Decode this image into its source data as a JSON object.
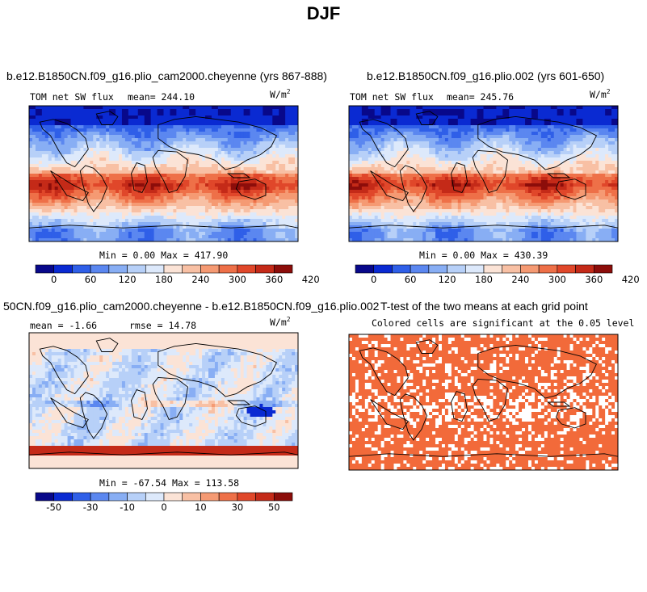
{
  "figure": {
    "title": "DJF"
  },
  "panels": [
    {
      "title": "b.e12.B1850CN.f09_g16.plio_cam2000.cheyenne (yrs 867-888)",
      "label": "TOM net SW flux",
      "stat": "mean= 244.10",
      "units": "W/m",
      "units_exp": "2",
      "range_text": "Min =   0.00 Max = 417.90"
    },
    {
      "title": "b.e12.B1850CN.f09_g16.plio.002 (yrs 601-650)",
      "label": "TOM net SW flux",
      "stat": "mean= 245.76",
      "units": "W/m",
      "units_exp": "2",
      "range_text": "Min =   0.00 Max = 430.39"
    },
    {
      "title": "50CN.f09_g16.plio_cam2000.cheyenne - b.e12.B1850CN.f09_g16.plio.002",
      "label": "mean =  -1.66",
      "stat": "rmse =  14.78",
      "units": "W/m",
      "units_exp": "2",
      "range_text": "Min = -67.54 Max = 113.58"
    },
    {
      "title": "T-test of the two means at each grid point",
      "subtitle": "Colored cells are significant at the 0.05 level"
    }
  ],
  "chart_data": [
    {
      "type": "heatmap",
      "title": "b.e12.B1850CN.f09_g16.plio_cam2000.cheyenne (yrs 867-888)",
      "variable": "TOM net SW flux",
      "mean": 244.1,
      "min": 0.0,
      "max": 417.9,
      "units": "W/m2",
      "colorbar_ticks": [
        "0",
        "60",
        "120",
        "180",
        "240",
        "300",
        "360",
        "420"
      ],
      "colorbar_colors": [
        "#08088a",
        "#0a2ad2",
        "#2f5fe8",
        "#5b87f0",
        "#88aef4",
        "#b7d0f8",
        "#dde9fb",
        "#fbe3d6",
        "#f8c0a4",
        "#f59a73",
        "#ee7048",
        "#e0472a",
        "#c42a18",
        "#8c0d0a"
      ]
    },
    {
      "type": "heatmap",
      "title": "b.e12.B1850CN.f09_g16.plio.002 (yrs 601-650)",
      "variable": "TOM net SW flux",
      "mean": 245.76,
      "min": 0.0,
      "max": 430.39,
      "units": "W/m2",
      "colorbar_ticks": [
        "0",
        "60",
        "120",
        "180",
        "240",
        "300",
        "360",
        "420"
      ],
      "colorbar_colors": [
        "#08088a",
        "#0a2ad2",
        "#2f5fe8",
        "#5b87f0",
        "#88aef4",
        "#b7d0f8",
        "#dde9fb",
        "#fbe3d6",
        "#f8c0a4",
        "#f59a73",
        "#ee7048",
        "#e0472a",
        "#c42a18",
        "#8c0d0a"
      ]
    },
    {
      "type": "heatmap",
      "title": "50CN.f09_g16.plio_cam2000.cheyenne - b.e12.B1850CN.f09_g16.plio.002",
      "mean": -1.66,
      "rmse": 14.78,
      "min": -67.54,
      "max": 113.58,
      "units": "W/m2",
      "colorbar_ticks": [
        "-50",
        "-30",
        "-10",
        "0",
        "10",
        "30",
        "50"
      ],
      "colorbar_colors": [
        "#08088a",
        "#0a2ad2",
        "#2f5fe8",
        "#5b87f0",
        "#88aef4",
        "#b7d0f8",
        "#dde9fb",
        "#fbe3d6",
        "#f8c0a4",
        "#f59a73",
        "#ee7048",
        "#e0472a",
        "#c42a18",
        "#8c0d0a"
      ]
    },
    {
      "type": "heatmap",
      "title": "T-test of the two means at each grid point",
      "note": "Colored cells are significant at the 0.05 level",
      "significant_color": "#f26a3a"
    }
  ]
}
